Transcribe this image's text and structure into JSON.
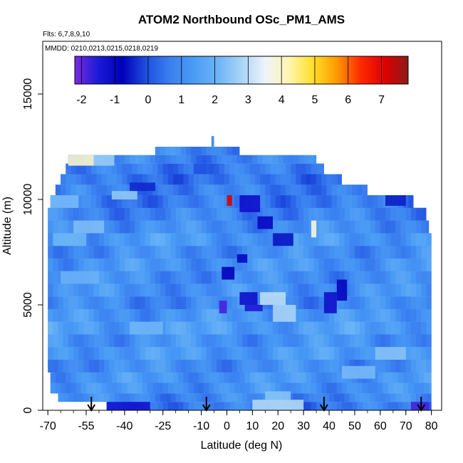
{
  "chart_data": {
    "type": "heatmap",
    "title": "ATOM2 Northbound OSc_PM1_AMS",
    "flights_note": "Flts: 6,7,8,9,10",
    "dates_note": "MMDD: 0210,0213,0215,0218,0219",
    "xlabel": "Latitude (deg N)",
    "ylabel": "Altitude (m)",
    "xlim": [
      -72,
      84
    ],
    "ylim": [
      0,
      17500
    ],
    "x_ticks": [
      -70,
      -55,
      -40,
      -25,
      -10,
      0,
      10,
      20,
      30,
      40,
      50,
      60,
      70,
      80
    ],
    "y_ticks": [
      0,
      5000,
      10000,
      15000
    ],
    "colorbar": {
      "min": -2.2,
      "max": 7.8,
      "ticks": [
        -2,
        -1,
        0,
        1,
        2,
        3,
        4,
        5,
        6,
        7
      ],
      "colors": [
        "#7b2be0",
        "#1a1ad6",
        "#0000b8",
        "#1f4fe0",
        "#3a7ff0",
        "#4a9cf5",
        "#6cb4f7",
        "#a8d4f5",
        "#eef4fb",
        "#fff5b0",
        "#ffdf2a",
        "#ff9a00",
        "#ff2a00",
        "#e00000",
        "#8b1a1a"
      ]
    },
    "profile_dates": [
      -53,
      -8,
      38,
      76
    ],
    "altitude_bands": [
      {
        "alt": [
          0,
          400
        ],
        "lat": [
          -47,
          80
        ],
        "value": 0.6
      },
      {
        "alt": [
          400,
          800
        ],
        "lat": [
          -66,
          80
        ],
        "value": 0.9
      },
      {
        "alt": [
          800,
          1300
        ],
        "lat": [
          -69,
          80
        ],
        "value": 1.1
      },
      {
        "alt": [
          1300,
          1800
        ],
        "lat": [
          -69,
          80
        ],
        "value": 1.2
      },
      {
        "alt": [
          1800,
          2400
        ],
        "lat": [
          -70,
          80
        ],
        "value": 1.0
      },
      {
        "alt": [
          2400,
          3000
        ],
        "lat": [
          -70,
          80
        ],
        "value": 1.3
      },
      {
        "alt": [
          3000,
          3600
        ],
        "lat": [
          -70,
          80
        ],
        "value": 1.1
      },
      {
        "alt": [
          3600,
          4200
        ],
        "lat": [
          -70,
          80
        ],
        "value": 1.4
      },
      {
        "alt": [
          4200,
          4800
        ],
        "lat": [
          -70,
          80
        ],
        "value": 1.2
      },
      {
        "alt": [
          4800,
          5400
        ],
        "lat": [
          -70,
          80
        ],
        "value": 0.9
      },
      {
        "alt": [
          5400,
          6000
        ],
        "lat": [
          -70,
          80
        ],
        "value": 1.1
      },
      {
        "alt": [
          6000,
          6600
        ],
        "lat": [
          -70,
          80
        ],
        "value": 1.0
      },
      {
        "alt": [
          6600,
          7200
        ],
        "lat": [
          -70,
          80
        ],
        "value": 1.2
      },
      {
        "alt": [
          7200,
          7800
        ],
        "lat": [
          -70,
          80
        ],
        "value": 1.0
      },
      {
        "alt": [
          7800,
          8400
        ],
        "lat": [
          -70,
          80
        ],
        "value": 1.3
      },
      {
        "alt": [
          8400,
          9000
        ],
        "lat": [
          -70,
          79
        ],
        "value": 1.0
      },
      {
        "alt": [
          9000,
          9600
        ],
        "lat": [
          -70,
          78
        ],
        "value": 0.8
      },
      {
        "alt": [
          9600,
          10200
        ],
        "lat": [
          -69,
          73
        ],
        "value": 0.6
      },
      {
        "alt": [
          10200,
          10700
        ],
        "lat": [
          -67,
          55
        ],
        "value": 0.7
      },
      {
        "alt": [
          10700,
          11200
        ],
        "lat": [
          -65,
          45
        ],
        "value": 0.5
      },
      {
        "alt": [
          11200,
          11700
        ],
        "lat": [
          -63,
          38
        ],
        "value": 0.6
      },
      {
        "alt": [
          11700,
          12100
        ],
        "lat": [
          -62,
          35
        ],
        "value": 0.8
      },
      {
        "alt": [
          12100,
          12500
        ],
        "lat": [
          -28,
          5
        ],
        "value": 0.9
      },
      {
        "alt": [
          12500,
          13000
        ],
        "lat": [
          -6,
          -5
        ],
        "value": 1.0
      }
    ],
    "anomalies": [
      {
        "alt": [
          11600,
          12100
        ],
        "lat": [
          -62,
          -52
        ],
        "value": 4.0
      },
      {
        "alt": [
          11600,
          12100
        ],
        "lat": [
          -52,
          -44
        ],
        "value": 2.6
      },
      {
        "alt": [
          9600,
          10200
        ],
        "lat": [
          -69,
          -58
        ],
        "value": 2.2
      },
      {
        "alt": [
          8400,
          9000
        ],
        "lat": [
          -60,
          -48
        ],
        "value": 2.3
      },
      {
        "alt": [
          7800,
          8400
        ],
        "lat": [
          -68,
          -55
        ],
        "value": 2.1
      },
      {
        "alt": [
          6000,
          6600
        ],
        "lat": [
          -65,
          -50
        ],
        "value": 2.0
      },
      {
        "alt": [
          5000,
          5600
        ],
        "lat": [
          13,
          23
        ],
        "value": 3.0
      },
      {
        "alt": [
          4200,
          5000
        ],
        "lat": [
          18,
          27
        ],
        "value": 2.8
      },
      {
        "alt": [
          0,
          500
        ],
        "lat": [
          10,
          30
        ],
        "value": 2.9
      },
      {
        "alt": [
          500,
          900
        ],
        "lat": [
          15,
          25
        ],
        "value": 2.4
      },
      {
        "alt": [
          2400,
          3000
        ],
        "lat": [
          58,
          70
        ],
        "value": 2.4
      },
      {
        "alt": [
          1500,
          2100
        ],
        "lat": [
          45,
          58
        ],
        "value": 2.2
      },
      {
        "alt": [
          3600,
          4200
        ],
        "lat": [
          -38,
          -25
        ],
        "value": 2.1
      },
      {
        "alt": [
          10000,
          10400
        ],
        "lat": [
          -45,
          -35
        ],
        "value": 2.5
      },
      {
        "alt": [
          4600,
          5200
        ],
        "lat": [
          -3,
          0
        ],
        "value": -1.8
      },
      {
        "alt": [
          4700,
          5000
        ],
        "lat": [
          7,
          14
        ],
        "value": -1.5
      },
      {
        "alt": [
          5000,
          5600
        ],
        "lat": [
          5,
          12
        ],
        "value": -1.2
      },
      {
        "alt": [
          9400,
          10200
        ],
        "lat": [
          5,
          13
        ],
        "value": -1.2
      },
      {
        "alt": [
          8600,
          9200
        ],
        "lat": [
          12,
          18
        ],
        "value": -1.0
      },
      {
        "alt": [
          0,
          400
        ],
        "lat": [
          -47,
          -30
        ],
        "value": -1.3
      },
      {
        "alt": [
          0,
          400
        ],
        "lat": [
          72,
          79
        ],
        "value": -1.8
      },
      {
        "alt": [
          4600,
          5600
        ],
        "lat": [
          38,
          43
        ],
        "value": -1.2
      },
      {
        "alt": [
          5200,
          6200
        ],
        "lat": [
          43,
          47
        ],
        "value": -0.9
      },
      {
        "alt": [
          7800,
          8400
        ],
        "lat": [
          18,
          26
        ],
        "value": -0.6
      },
      {
        "alt": [
          6200,
          6800
        ],
        "lat": [
          -2,
          3
        ],
        "value": -0.8
      },
      {
        "alt": [
          7000,
          7400
        ],
        "lat": [
          4,
          8
        ],
        "value": -0.7
      },
      {
        "alt": [
          10400,
          10800
        ],
        "lat": [
          -38,
          -28
        ],
        "value": -0.4
      },
      {
        "alt": [
          9700,
          10200
        ],
        "lat": [
          62,
          70
        ],
        "value": -0.5
      },
      {
        "alt": [
          11200,
          11700
        ],
        "lat": [
          -13,
          -8
        ],
        "value": 0.0
      },
      {
        "alt": [
          9700,
          10200
        ],
        "lat": [
          0,
          2
        ],
        "value": 7.2
      },
      {
        "alt": [
          8200,
          9000
        ],
        "lat": [
          33,
          35
        ],
        "value": 3.8
      }
    ]
  }
}
